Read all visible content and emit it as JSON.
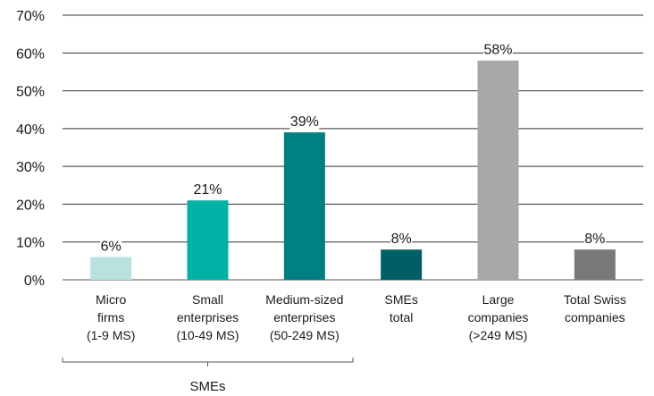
{
  "chart_data": {
    "type": "bar",
    "categories": [
      [
        "Micro",
        "firms",
        "(1-9 MS)"
      ],
      [
        "Small",
        "enterprises",
        "(10-49 MS)"
      ],
      [
        "Medium-sized",
        "enterprises",
        "(50-249 MS)"
      ],
      [
        "SMEs",
        "total"
      ],
      [
        "Large",
        "companies",
        "(>249 MS)"
      ],
      [
        "Total Swiss",
        "companies"
      ]
    ],
    "values": [
      6,
      21,
      39,
      8,
      58,
      8
    ],
    "value_labels": [
      "6%",
      "21%",
      "39%",
      "8%",
      "58%",
      "8%"
    ],
    "colors": [
      "#b9e2df",
      "#00b2a5",
      "#007f80",
      "#005f66",
      "#a8a8a8",
      "#787878"
    ],
    "yticks": [
      "0%",
      "10%",
      "20%",
      "30%",
      "40%",
      "50%",
      "60%",
      "70%"
    ],
    "ylim": [
      0,
      70
    ],
    "grid": true,
    "group_bracket": {
      "label": "SMEs",
      "from_category": 0,
      "to_category": 2
    },
    "title": "",
    "xlabel": "",
    "ylabel": ""
  }
}
